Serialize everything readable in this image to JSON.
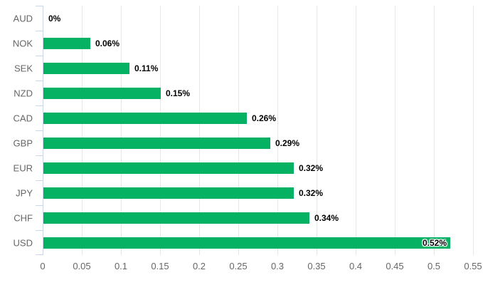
{
  "chart_data": {
    "type": "bar",
    "orientation": "horizontal",
    "title": "",
    "categories": [
      "AUD",
      "NOK",
      "SEK",
      "NZD",
      "CAD",
      "GBP",
      "EUR",
      "JPY",
      "CHF",
      "USD"
    ],
    "values": [
      0,
      0.06,
      0.11,
      0.15,
      0.26,
      0.29,
      0.32,
      0.32,
      0.34,
      0.52
    ],
    "data_labels": [
      "0%",
      "0.06%",
      "0.11%",
      "0.15%",
      "0.26%",
      "0.29%",
      "0.32%",
      "0.32%",
      "0.34%",
      "0.52%"
    ],
    "xlabel": "",
    "ylabel": "",
    "xlim": [
      0,
      0.55
    ],
    "x_tick_values": [
      0,
      0.05,
      0.1,
      0.15,
      0.2,
      0.25,
      0.3,
      0.35,
      0.4,
      0.45,
      0.5,
      0.55
    ],
    "x_tick_labels": [
      "0",
      "0.05",
      "0.1",
      "0.15",
      "0.2",
      "0.25",
      "0.3",
      "0.35",
      "0.4",
      "0.45",
      "0.5",
      "0.55"
    ],
    "grid": true,
    "legend": "none",
    "colors": {
      "bar": "#05b263",
      "axis_line": "#ccd6eb",
      "gridline": "#e6e6e6",
      "category_label": "#666666",
      "tick_label": "#666666",
      "data_label": "#000000",
      "background": "#ffffff"
    }
  }
}
